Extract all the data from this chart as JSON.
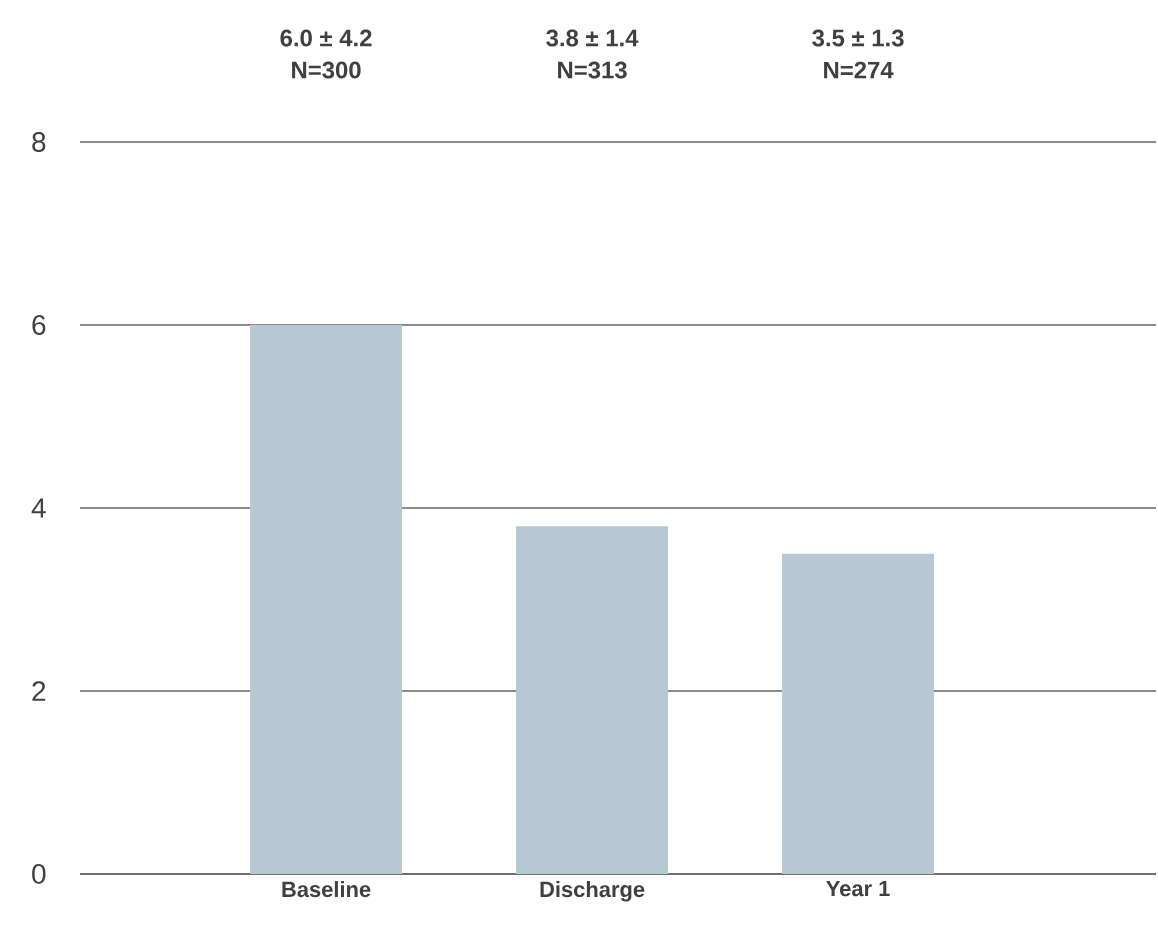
{
  "chart_data": {
    "type": "bar",
    "categories": [
      "Baseline",
      "Discharge",
      "Year 1"
    ],
    "values": [
      6.0,
      3.8,
      3.5
    ],
    "color": "#b8c8d2",
    "value_labels": [
      "6.0 ± 4.2",
      "3.8 ± 1.4",
      "3.5 ± 1.3"
    ],
    "annotations": [
      "N=300",
      "N=313",
      "N=274"
    ],
    "ylim": [
      0,
      8
    ],
    "yticks": [
      0,
      2,
      4,
      6,
      8
    ],
    "grid": "y"
  }
}
